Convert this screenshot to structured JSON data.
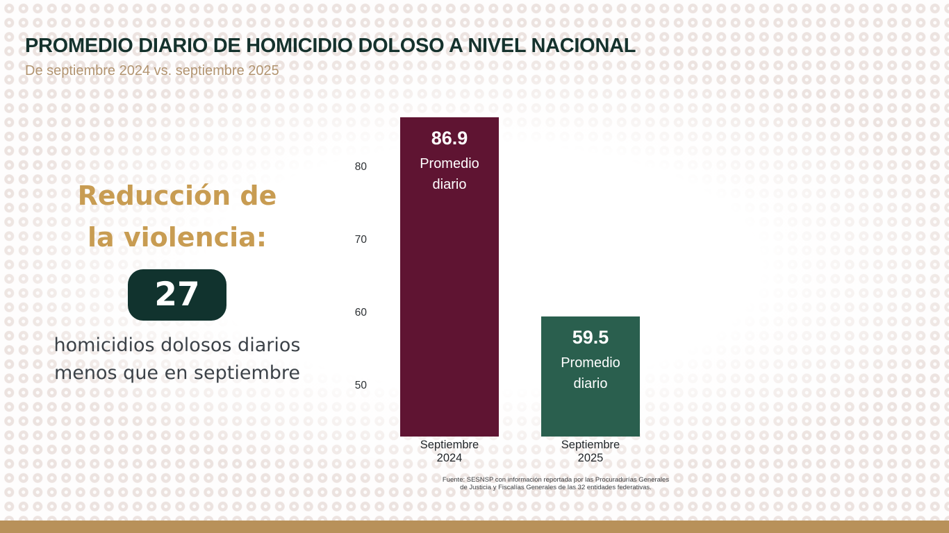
{
  "page": {
    "title": "PROMEDIO DIARIO DE HOMICIDIO DOLOSO A NIVEL NACIONAL",
    "subtitle": "De septiembre 2024 vs. septiembre 2025"
  },
  "highlight": {
    "heading_line1": "Reducción de",
    "heading_line2": "la violencia:",
    "badge_value": "27",
    "description_line1": "homicidios dolosos diarios",
    "description_line2": "menos que en septiembre"
  },
  "chart_data": {
    "type": "bar",
    "categories": [
      "Septiembre 2024",
      "Septiembre 2025"
    ],
    "values": [
      86.9,
      59.5
    ],
    "value_labels": [
      "86.9",
      "59.5"
    ],
    "bar_sublabel": "Promedio diario",
    "bar_colors": [
      "#5f1432",
      "#2a5f4e"
    ],
    "yticks": [
      50,
      60,
      70,
      80
    ],
    "ylim": [
      43,
      90
    ],
    "grid": false,
    "legend": false,
    "title": "",
    "xlabel": "",
    "ylabel": ""
  },
  "source": {
    "line1": "Fuente: SESNSP con información reportada por las Procuradurías Generales",
    "line2": "de Justicia y Fiscalías Generales de las 32 entidades federativas."
  },
  "colors": {
    "title": "#15322d",
    "subtitle": "#b29470",
    "gold": "#c89c52",
    "badge_bg": "#11332e",
    "bar_2024": "#5f1432",
    "bar_2025": "#2a5f4e",
    "text_dark": "#3c4248",
    "footer": "#b8915a"
  }
}
